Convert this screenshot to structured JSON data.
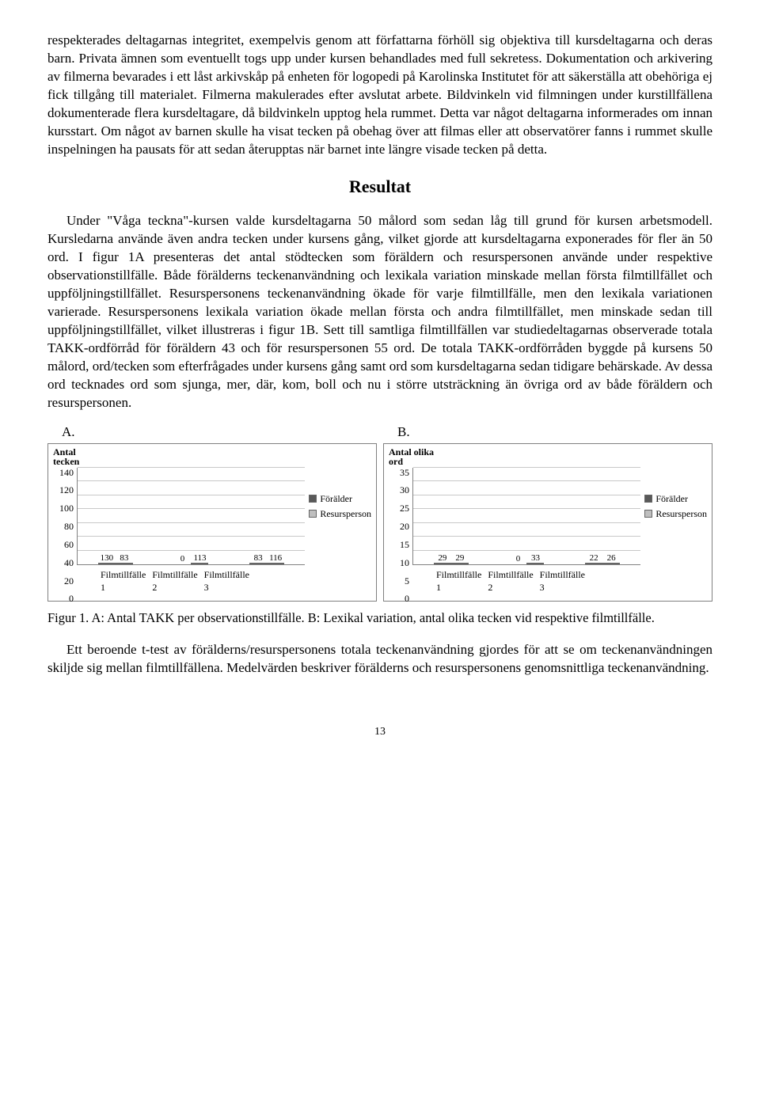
{
  "paragraphs": {
    "p1": "respekterades deltagarnas integritet, exempelvis genom att författarna förhöll sig objektiva till kursdeltagarna och deras barn. Privata ämnen som eventuellt togs upp under kursen behandlades med full sekretess. Dokumentation och arkivering av filmerna bevarades i ett låst arkivskåp på enheten för logopedi på Karolinska Institutet för att säkerställa att obehöriga ej fick tillgång till materialet. Filmerna makulerades efter avslutat arbete. Bildvinkeln vid filmningen under kurstillfällena dokumenterade flera kursdeltagare, då bildvinkeln upptog hela rummet. Detta var något deltagarna informerades om innan kursstart. Om något av barnen skulle ha visat tecken på obehag över att filmas eller att observatörer fanns i rummet skulle inspelningen ha pausats för att sedan återupptas när barnet inte längre visade tecken på detta.",
    "heading": "Resultat",
    "p2": "Under \"Våga teckna\"-kursen valde kursdeltagarna 50 målord som sedan låg till grund för kursen arbetsmodell. Kursledarna använde även andra tecken under kursens gång, vilket gjorde att kursdeltagarna exponerades för fler än 50 ord. I figur 1A presenteras det antal stödtecken som föräldern och resurspersonen använde under respektive observationstillfälle. Både förälderns teckenanvändning och lexikala variation minskade mellan första filmtillfället och uppföljningstillfället. Resurspersonens teckenanvändning ökade för varje filmtillfälle, men den lexikala variationen varierade. Resurspersonens lexikala variation ökade mellan första och andra filmtillfället, men minskade sedan till uppföljningstillfället, vilket illustreras i figur 1B. Sett till samtliga filmtillfällen var studiedeltagarnas observerade totala TAKK-ordförråd för föräldern 43 och för resurspersonen 55 ord. De totala TAKK-ordförråden byggde på kursens 50 målord, ord/tecken som efterfrågades under kursens gång samt ord som kursdeltagarna sedan tidigare behärskade. Av dessa ord tecknades ord som sjunga, mer, där, kom, boll och nu i större utsträckning än övriga ord av både föräldern och resurspersonen.",
    "caption": "Figur 1. A: Antal TAKK per observationstillfälle. B: Lexikal variation, antal olika tecken vid respektive filmtillfälle.",
    "p3": "Ett beroende t-test av förälderns/resurspersonens totala teckenanvändning gjordes för att se om teckenanvändningen skiljde sig mellan filmtillfällena. Medelvärden beskriver förälderns och resurspersonens genomsnittliga teckenanvändning.",
    "page_num": "13"
  },
  "chartA": {
    "letter": "A.",
    "y_title": "Antal\ntecken",
    "ymax": 140,
    "ytick_step": 20,
    "categories": [
      "Filmtillfälle 1",
      "Filmtillfälle 2",
      "Filmtillfälle 3"
    ],
    "series": [
      {
        "name": "Förälder",
        "color": "#595959",
        "values": [
          130,
          0,
          83
        ]
      },
      {
        "name": "Resursperson",
        "color": "#bfbfbf",
        "values": [
          83,
          113,
          116
        ]
      }
    ],
    "grid_color": "#c8c8c8",
    "border_color": "#808080"
  },
  "chartB": {
    "letter": "B.",
    "y_title": "Antal olika\nord",
    "ymax": 35,
    "ytick_step": 5,
    "categories": [
      "Filmtillfälle 1",
      "Filmtillfälle 2",
      "Filmtillfälle 3"
    ],
    "series": [
      {
        "name": "Förälder",
        "color": "#595959",
        "values": [
          29,
          0,
          22
        ]
      },
      {
        "name": "Resursperson",
        "color": "#bfbfbf",
        "values": [
          29,
          33,
          26
        ]
      }
    ],
    "grid_color": "#c8c8c8",
    "border_color": "#808080"
  }
}
